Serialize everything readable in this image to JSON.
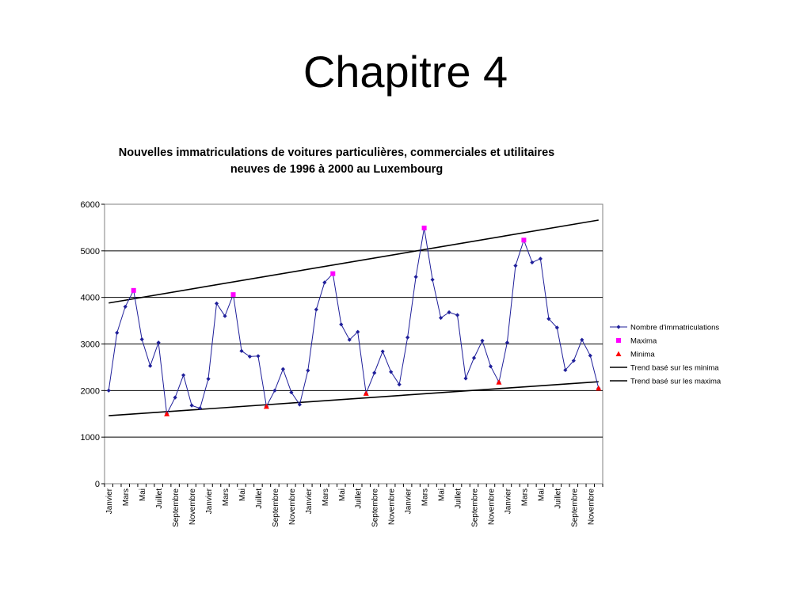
{
  "slide": {
    "title": "Chapitre 4"
  },
  "chart_data": {
    "type": "line",
    "title": "Nouvelles immatriculations de voitures particulières, commerciales et utilitaires",
    "subtitle": "neuves de 1996 à 2000 au Luxembourg",
    "xlabel": "",
    "ylabel": "",
    "ylim": [
      0,
      6000
    ],
    "yticks": [
      0,
      1000,
      2000,
      3000,
      4000,
      5000,
      6000
    ],
    "grid": true,
    "legend_position": "right",
    "x_tick_labels": [
      "Janvier",
      "Mars",
      "Mai",
      "Juillet",
      "Septembre",
      "Novembre",
      "Janvier",
      "Mars",
      "Mai",
      "Juillet",
      "Septembre",
      "Novembre",
      "Janvier",
      "Mars",
      "Mai",
      "Juillet",
      "Septembre",
      "Novembre",
      "Janvier",
      "Mars",
      "Mai",
      "Juillet",
      "Septembre",
      "Novembre",
      "Janvier",
      "Mars",
      "Mai",
      "Juillet",
      "Septembre",
      "Novembre"
    ],
    "series": [
      {
        "name": "Nombre d'immatriculations",
        "color": "#1f1f9a",
        "marker": "diamond",
        "values": [
          2000,
          3240,
          3800,
          4150,
          3100,
          2530,
          3030,
          1500,
          1850,
          2330,
          1680,
          1620,
          2250,
          3870,
          3600,
          4060,
          2850,
          2730,
          2740,
          1660,
          2000,
          2460,
          1960,
          1700,
          2430,
          3740,
          4320,
          4510,
          3420,
          3090,
          3260,
          1940,
          2380,
          2840,
          2400,
          2130,
          3140,
          4440,
          5490,
          4380,
          3560,
          3680,
          3620,
          2260,
          2700,
          3070,
          2520,
          2180,
          3030,
          4680,
          5230,
          4750,
          4830,
          3540,
          3350,
          2440,
          2640,
          3090,
          2750,
          2050
        ]
      },
      {
        "name": "Maxima",
        "color": "#ff00ff",
        "marker": "square",
        "points": [
          [
            3,
            4150
          ],
          [
            15,
            4060
          ],
          [
            27,
            4510
          ],
          [
            38,
            5490
          ],
          [
            50,
            5230
          ]
        ]
      },
      {
        "name": "Minima",
        "color": "#ff0000",
        "marker": "triangle",
        "points": [
          [
            7,
            1500
          ],
          [
            19,
            1660
          ],
          [
            31,
            1940
          ],
          [
            47,
            2180
          ],
          [
            59,
            2050
          ]
        ]
      },
      {
        "name": "Trend basé sur les minima",
        "color": "#000000",
        "line": [
          [
            0,
            1460
          ],
          [
            59,
            2190
          ]
        ]
      },
      {
        "name": "Trend basé sur les maxima",
        "color": "#000000",
        "line": [
          [
            0,
            3880
          ],
          [
            59,
            5660
          ]
        ]
      }
    ]
  }
}
